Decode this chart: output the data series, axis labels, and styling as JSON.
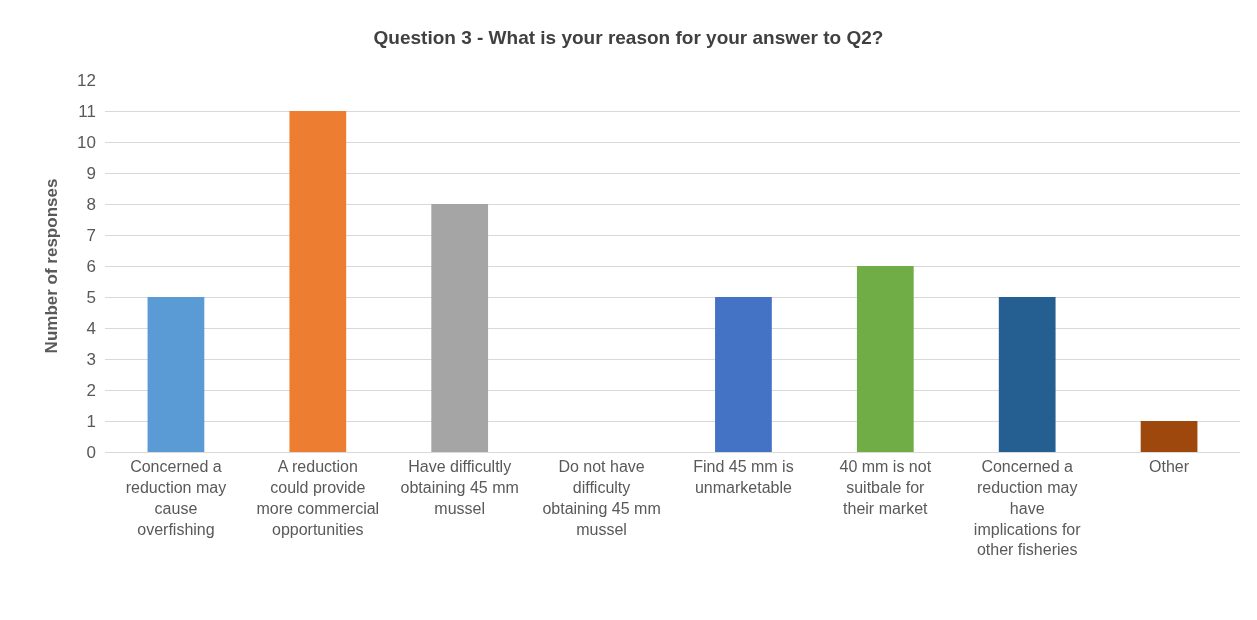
{
  "chart_data": {
    "type": "bar",
    "title": "Question 3 - What is your reason for your answer to Q2?",
    "ylabel": "Number of responses",
    "categories": [
      "Concerned a reduction may cause overfishing",
      "A reduction could provide more commercial opportunities",
      "Have difficultly obtaining 45 mm mussel",
      "Do not have difficulty obtaining 45 mm mussel",
      "Find 45 mm is unmarketable",
      "40 mm is not suitbale for their market",
      "Concerned a reduction may have implications for other fisheries",
      "Other"
    ],
    "values": [
      5,
      11,
      8,
      0,
      5,
      6,
      5,
      1
    ],
    "colors": [
      "#5b9bd5",
      "#ed7d31",
      "#a5a5a5",
      "#ffc000",
      "#4472c4",
      "#70ad47",
      "#255e91",
      "#9e480e"
    ],
    "ylim": [
      0,
      12
    ],
    "yticks": [
      0,
      1,
      2,
      3,
      4,
      5,
      6,
      7,
      8,
      9,
      10,
      11,
      12
    ],
    "grid": "y"
  }
}
